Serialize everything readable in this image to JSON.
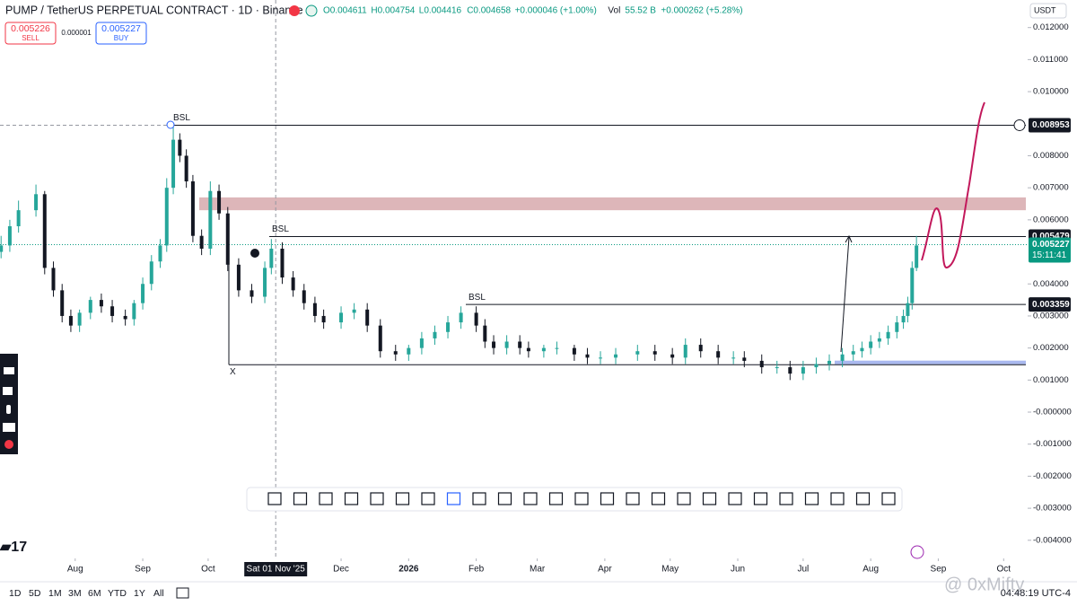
{
  "header": {
    "title": "PUMP / TetherUS PERPETUAL CONTRACT · 1D · Binance",
    "legend_values": [
      "O0.004611",
      "H0.004754",
      "L0.004416",
      "C0.004658",
      "+0.000046 (+1.00%)"
    ],
    "volume_label": "Vol",
    "volume": "55.52 B",
    "volume_change": "+0.000262 (+5.28%)"
  },
  "trade": {
    "sell_price": "0.005226",
    "sell": "SELL",
    "spread": "0.000001",
    "buy_price": "0.005227",
    "buy": "BUY"
  },
  "currency": "USDT",
  "timeframes": [
    "1D",
    "5D",
    "1M",
    "3M",
    "6M",
    "YTD",
    "1Y",
    "All"
  ],
  "clock": "04:48:19 UTC-4",
  "watermark": "@ 0xMifty",
  "chart_data": {
    "type": "candlestick",
    "up_color": "#26a69a",
    "down_color": "#131722",
    "x": [
      -16,
      -12,
      -8,
      0,
      4,
      8,
      12,
      16,
      20,
      25,
      30,
      35,
      41,
      45,
      49,
      53,
      57,
      60,
      63,
      66,
      69,
      72,
      76,
      80,
      84,
      88,
      93,
      99,
      105,
      108,
      113,
      118,
      123,
      128,
      132,
      140,
      146,
      152,
      158,
      165,
      171,
      177,
      183,
      189,
      195,
      202,
      206,
      210,
      216,
      222,
      226,
      233,
      239,
      247,
      253,
      259,
      266,
      276,
      284,
      292,
      298,
      305,
      313,
      320,
      325,
      333,
      340,
      346,
      352,
      358,
      364,
      370,
      375,
      379,
      383,
      387,
      391,
      395,
      398,
      400,
      402,
      404
    ],
    "open": [
      0.005,
      0.0052,
      0.0058,
      0.0063,
      0.0068,
      0.0045,
      0.0038,
      0.003,
      0.0027,
      0.0031,
      0.0035,
      0.0033,
      0.003,
      0.0029,
      0.0034,
      0.004,
      0.0047,
      0.0052,
      0.007,
      0.0085,
      0.008,
      0.0072,
      0.0055,
      0.0051,
      0.0069,
      0.0062,
      0.0046,
      0.0038,
      0.0036,
      0.0045,
      0.0051,
      0.0042,
      0.0038,
      0.0034,
      0.003,
      0.0028,
      0.0031,
      0.0032,
      0.0027,
      0.0019,
      0.0018,
      0.002,
      0.0023,
      0.0025,
      0.0028,
      0.0031,
      0.0027,
      0.0022,
      0.002,
      0.0022,
      0.002,
      0.0019,
      0.002,
      0.002,
      0.0018,
      0.0017,
      0.0017,
      0.0018,
      0.0019,
      0.0018,
      0.0017,
      0.0021,
      0.0019,
      0.0017,
      0.0017,
      0.0016,
      0.0014,
      0.0014,
      0.0012,
      0.0014,
      0.0015,
      0.0016,
      0.0018,
      0.0019,
      0.002,
      0.0022,
      0.0023,
      0.0025,
      0.0028,
      0.003,
      0.0034,
      0.0045
    ],
    "high": [
      0.0055,
      0.006,
      0.0066,
      0.0071,
      0.0069,
      0.0047,
      0.004,
      0.0032,
      0.0032,
      0.0036,
      0.0037,
      0.0035,
      0.0032,
      0.0035,
      0.0042,
      0.0049,
      0.0054,
      0.0073,
      0.0089,
      0.0087,
      0.0082,
      0.0074,
      0.0057,
      0.0072,
      0.0071,
      0.0064,
      0.0048,
      0.004,
      0.0047,
      0.0054,
      0.0053,
      0.0044,
      0.004,
      0.0036,
      0.0032,
      0.0033,
      0.0034,
      0.0034,
      0.0029,
      0.0021,
      0.0021,
      0.0025,
      0.0027,
      0.003,
      0.0033,
      0.0033,
      0.0029,
      0.0024,
      0.0024,
      0.0024,
      0.0022,
      0.0021,
      0.0022,
      0.0021,
      0.002,
      0.0019,
      0.002,
      0.0021,
      0.0021,
      0.002,
      0.0023,
      0.0023,
      0.0021,
      0.0019,
      0.0019,
      0.0018,
      0.0016,
      0.0016,
      0.0016,
      0.0017,
      0.0018,
      0.002,
      0.0021,
      0.0022,
      0.0024,
      0.0025,
      0.0027,
      0.003,
      0.0032,
      0.0036,
      0.0047,
      0.0055
    ],
    "low": [
      0.0048,
      0.005,
      0.0056,
      0.0061,
      0.0043,
      0.0036,
      0.0028,
      0.0025,
      0.0025,
      0.0029,
      0.0031,
      0.0028,
      0.0027,
      0.0027,
      0.0032,
      0.0038,
      0.0045,
      0.005,
      0.0068,
      0.0078,
      0.007,
      0.0053,
      0.0049,
      0.0049,
      0.006,
      0.0044,
      0.0036,
      0.0034,
      0.0034,
      0.0043,
      0.004,
      0.0036,
      0.0032,
      0.0028,
      0.0026,
      0.0026,
      0.0029,
      0.0025,
      0.0017,
      0.0016,
      0.0016,
      0.0018,
      0.0021,
      0.0023,
      0.0026,
      0.0025,
      0.002,
      0.0018,
      0.0018,
      0.0018,
      0.0017,
      0.0017,
      0.0018,
      0.0016,
      0.0015,
      0.0015,
      0.0015,
      0.0016,
      0.0016,
      0.0015,
      0.0015,
      0.0017,
      0.0015,
      0.0015,
      0.0014,
      0.0012,
      0.0012,
      0.001,
      0.001,
      0.0012,
      0.0013,
      0.0014,
      0.0016,
      0.0017,
      0.0018,
      0.002,
      0.0021,
      0.0023,
      0.0026,
      0.0028,
      0.0032,
      0.0044
    ],
    "close": [
      0.0052,
      0.0058,
      0.0063,
      0.0068,
      0.0045,
      0.0038,
      0.003,
      0.0027,
      0.0031,
      0.0035,
      0.0033,
      0.003,
      0.0029,
      0.0034,
      0.004,
      0.0047,
      0.0052,
      0.007,
      0.0085,
      0.008,
      0.0072,
      0.0055,
      0.0051,
      0.0069,
      0.0062,
      0.0046,
      0.0038,
      0.0036,
      0.0045,
      0.0051,
      0.0042,
      0.0038,
      0.0034,
      0.003,
      0.0028,
      0.0031,
      0.0032,
      0.0027,
      0.0019,
      0.0018,
      0.002,
      0.0023,
      0.0025,
      0.0028,
      0.0031,
      0.0027,
      0.0022,
      0.002,
      0.0022,
      0.002,
      0.0019,
      0.002,
      0.002,
      0.0018,
      0.0017,
      0.0017,
      0.0018,
      0.0019,
      0.0018,
      0.0017,
      0.0021,
      0.0019,
      0.0017,
      0.0017,
      0.0016,
      0.0014,
      0.0014,
      0.0012,
      0.0014,
      0.0015,
      0.0016,
      0.0018,
      0.0019,
      0.002,
      0.0022,
      0.0023,
      0.0025,
      0.0028,
      0.003,
      0.0034,
      0.0045,
      0.0052
    ],
    "xlim": [
      -16.5,
      455
    ],
    "xticks": [
      {
        "value": 18,
        "label": "Aug"
      },
      {
        "value": 49,
        "label": "Sep"
      },
      {
        "value": 79,
        "label": "Oct"
      },
      {
        "value": 140,
        "label": "Dec"
      },
      {
        "value": 171,
        "label": "2026"
      },
      {
        "value": 202,
        "label": "Feb"
      },
      {
        "value": 230,
        "label": "Mar"
      },
      {
        "value": 261,
        "label": "Apr"
      },
      {
        "value": 291,
        "label": "May"
      },
      {
        "value": 322,
        "label": "Jun"
      },
      {
        "value": 352,
        "label": "Jul"
      },
      {
        "value": 383,
        "label": "Aug"
      },
      {
        "value": 414,
        "label": "Sep"
      },
      {
        "value": 444,
        "label": "Oct"
      }
    ],
    "crosshair": {
      "x": 110,
      "label": "Sat 01 Nov '25"
    },
    "ylim": [
      -0.00451,
      0.01286
    ],
    "yticks": [
      {
        "value": 0.012,
        "label": "0.012000"
      },
      {
        "value": 0.011,
        "label": "0.011000"
      },
      {
        "value": 0.01,
        "label": "0.010000"
      },
      {
        "value": 0.008,
        "label": "0.008000"
      },
      {
        "value": 0.007,
        "label": "0.007000"
      },
      {
        "value": 0.006,
        "label": "0.006000"
      },
      {
        "value": 0.004,
        "label": "0.004000"
      },
      {
        "value": 0.003,
        "label": "0.003000"
      },
      {
        "value": 0.002,
        "label": "0.002000"
      },
      {
        "value": 0.001,
        "label": "0.001000"
      },
      {
        "value": 0,
        "label": "-0.000000"
      },
      {
        "value": -0.001,
        "label": "-0.001000"
      },
      {
        "value": -0.002,
        "label": "-0.002000"
      },
      {
        "value": -0.003,
        "label": "-0.003000"
      },
      {
        "value": -0.004,
        "label": "-0.004000"
      }
    ],
    "levels": [
      {
        "value": 0.008953,
        "note": "BSL"
      },
      {
        "value": 0.005479,
        "note": "BSL"
      },
      {
        "value": 0.003359,
        "note": "BSL"
      }
    ],
    "range_low": {
      "value": 0.00148,
      "note": "X"
    },
    "zone": {
      "low": 0.0063,
      "high": 0.0067,
      "color": "#d7a9ad"
    },
    "support": {
      "value": 0.00155,
      "color": "#a9b8ef"
    },
    "last": {
      "value": 0.005227,
      "label": "0.005227",
      "countdown": "15:11:41",
      "color": "#089981"
    }
  }
}
